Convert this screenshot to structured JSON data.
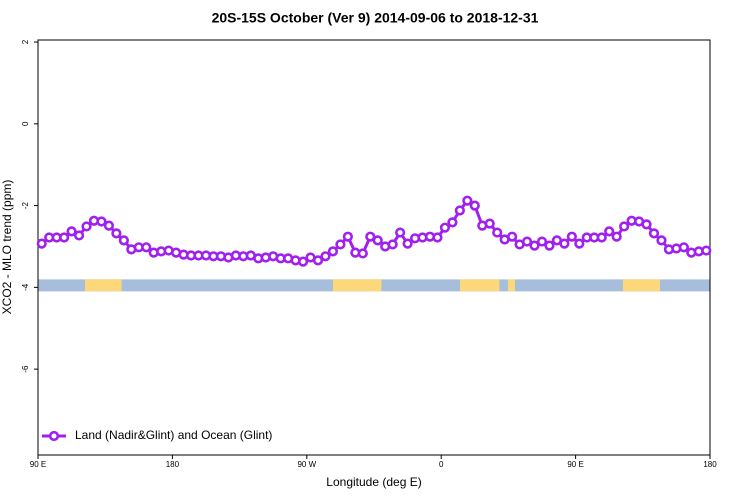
{
  "chart_data": {
    "type": "line",
    "title": "20S-15S October (Ver 9)   2014-09-06 to 2018-12-31",
    "x_label": "Longitude (deg E)",
    "y_label": "XCO2 - MLO trend (ppm)",
    "xlim": [
      90,
      540
    ],
    "ylim": [
      -8.1,
      2.05
    ],
    "xticks": [
      {
        "value": 90,
        "label": "90 E"
      },
      180,
      {
        "value": 270,
        "label": "90 W"
      },
      {
        "value": 360,
        "label": "0"
      },
      {
        "value": 450,
        "label": "90 E"
      },
      {
        "value": 540,
        "label": "180"
      }
    ],
    "yticks": [
      2,
      0,
      -2,
      -4,
      -6
    ],
    "legend": "bottom-left",
    "series": [
      {
        "name": "Land (Nadir&Glint) and Ocean (Glint)",
        "color": "#a020f0",
        "x": [
          92.5,
          97.5,
          102.5,
          107.5,
          112.5,
          117.5,
          122.5,
          127.5,
          132.5,
          137.5,
          142.5,
          147.5,
          152.5,
          157.5,
          162.5,
          167.5,
          172.5,
          177.5,
          182.5,
          187.5,
          192.5,
          197.5,
          202.5,
          207.5,
          212.5,
          217.5,
          222.5,
          227.5,
          232.5,
          237.5,
          242.5,
          247.5,
          252.5,
          257.5,
          262.5,
          267.5,
          272.5,
          277.5,
          282.5,
          287.5,
          292.5,
          297.5,
          302.5,
          307.5,
          312.5,
          317.5,
          322.5,
          327.5,
          332.5,
          337.5,
          342.5,
          347.5,
          352.5,
          357.5,
          362.5,
          367.5,
          372.5,
          377.5,
          382.5,
          387.5,
          392.5,
          397.5,
          402.5,
          407.5,
          412.5,
          417.5,
          422.5,
          427.5,
          432.5,
          437.5,
          442.5,
          447.5,
          452.5,
          457.5,
          462.5,
          467.5,
          472.5,
          477.5,
          482.5,
          487.5,
          492.5,
          497.5,
          502.5,
          507.5,
          512.5,
          517.5,
          522.5,
          527.5,
          532.5,
          537.5
        ],
        "values": [
          -2.93,
          -2.78,
          -2.78,
          -2.78,
          -2.63,
          -2.73,
          -2.51,
          -2.37,
          -2.39,
          -2.49,
          -2.68,
          -2.85,
          -3.07,
          -3.02,
          -3.02,
          -3.15,
          -3.12,
          -3.1,
          -3.15,
          -3.2,
          -3.22,
          -3.22,
          -3.22,
          -3.24,
          -3.24,
          -3.27,
          -3.22,
          -3.24,
          -3.22,
          -3.29,
          -3.27,
          -3.24,
          -3.29,
          -3.29,
          -3.34,
          -3.37,
          -3.27,
          -3.34,
          -3.24,
          -3.12,
          -2.95,
          -2.76,
          -3.15,
          -3.17,
          -2.76,
          -2.85,
          -3.0,
          -2.95,
          -2.66,
          -2.93,
          -2.8,
          -2.78,
          -2.76,
          -2.78,
          -2.54,
          -2.41,
          -2.12,
          -1.88,
          -2.0,
          -2.49,
          -2.44,
          -2.66,
          -2.83,
          -2.76,
          -2.95,
          -2.88,
          -2.98,
          -2.88,
          -2.98,
          -2.85,
          -2.93,
          -2.76,
          -2.93,
          -2.78,
          -2.78,
          -2.78,
          -2.63,
          -2.76,
          -2.51,
          -2.37,
          -2.39,
          -2.46,
          -2.68,
          -2.85,
          -3.07,
          -3.05,
          -3.02,
          -3.15,
          -3.12,
          -3.1
        ]
      }
    ],
    "surface_band": {
      "y": -3.95,
      "ocean_color": "#a6bddb",
      "land_color": "#fdd87a",
      "land": [
        [
          121.5,
          146
        ],
        [
          287.5,
          320
        ],
        [
          372.6,
          399
        ],
        [
          404.7,
          409.4
        ],
        [
          481.7,
          506.5
        ]
      ]
    }
  }
}
